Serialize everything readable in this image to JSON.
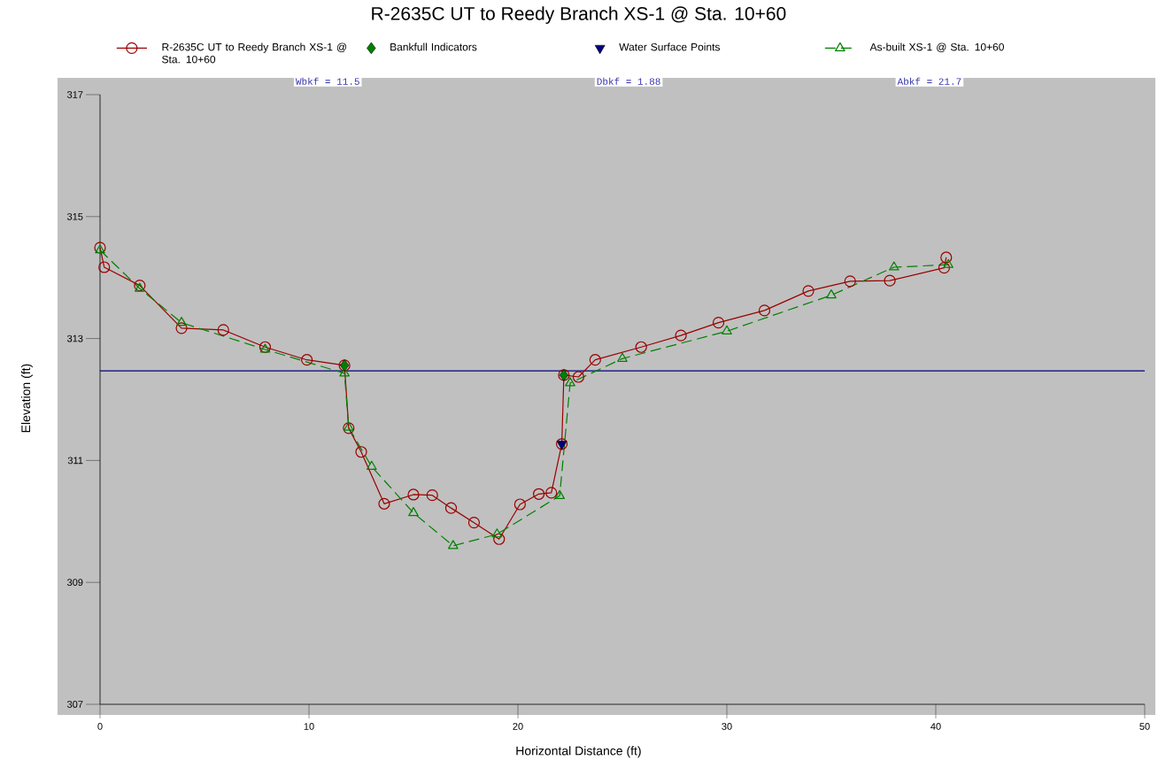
{
  "chart_data": {
    "type": "line",
    "title": "R-2635C UT to Reedy Branch XS-1 @ Sta. 10+60",
    "xlabel": "Horizontal Distance (ft)",
    "ylabel": "Elevation (ft)",
    "xlim": [
      0,
      50
    ],
    "ylim": [
      307,
      317
    ],
    "xticks": [
      0,
      10,
      20,
      30,
      40,
      50
    ],
    "yticks": [
      307,
      309,
      311,
      313,
      315,
      317
    ],
    "legend": "top",
    "annotations": [
      "Wbkf = 11.5",
      "Dbkf = 1.88",
      "Abkf = 21.7"
    ],
    "ref_lines": [
      {
        "axis": "y",
        "value": 312.47,
        "color": "#000080"
      }
    ],
    "series": [
      {
        "name": "R-2635C UT to Reedy Branch XS-1 @ Sta. 10+60",
        "marker": "circle",
        "line_style": "solid",
        "color": "#990000",
        "x": [
          0,
          0.2,
          1.9,
          3.9,
          5.9,
          7.9,
          9.9,
          11.7,
          11.9,
          12.5,
          13.6,
          15.0,
          15.9,
          16.8,
          17.9,
          19.1,
          20.1,
          21.0,
          21.6,
          22.1,
          22.2,
          22.9,
          23.7,
          25.9,
          27.8,
          29.6,
          31.8,
          33.9,
          35.9,
          37.8,
          40.4,
          40.5
        ],
        "values": [
          314.49,
          314.17,
          313.87,
          313.17,
          313.14,
          312.86,
          312.65,
          312.56,
          311.53,
          311.14,
          310.29,
          310.44,
          310.43,
          310.22,
          309.98,
          309.71,
          310.28,
          310.45,
          310.47,
          311.27,
          312.4,
          312.37,
          312.65,
          312.86,
          313.05,
          313.26,
          313.46,
          313.78,
          313.94,
          313.95,
          314.16,
          314.33
        ]
      },
      {
        "name": "Bankfull Indicators",
        "type": "scatter",
        "marker": "diamond",
        "color": "#008000",
        "x": [
          11.7,
          22.2
        ],
        "values": [
          312.56,
          312.4
        ]
      },
      {
        "name": "Water Surface Points",
        "type": "scatter",
        "marker": "triangle",
        "color": "#000080",
        "x": [
          22.1
        ],
        "values": [
          311.27
        ]
      },
      {
        "name": "As-built XS-1 @ Sta. 10+60",
        "marker": "triangle",
        "line_style": "dashed",
        "color": "#008000",
        "x": [
          0,
          1.9,
          3.9,
          7.9,
          11.7,
          11.9,
          13.0,
          15.0,
          16.9,
          19.0,
          22.0,
          22.5,
          25.0,
          30.0,
          35.0,
          38.0,
          40.6
        ],
        "values": [
          314.45,
          313.82,
          313.26,
          312.82,
          312.43,
          311.54,
          310.9,
          310.14,
          309.6,
          309.79,
          310.42,
          312.27,
          312.67,
          313.12,
          313.71,
          314.17,
          314.21
        ]
      }
    ]
  }
}
